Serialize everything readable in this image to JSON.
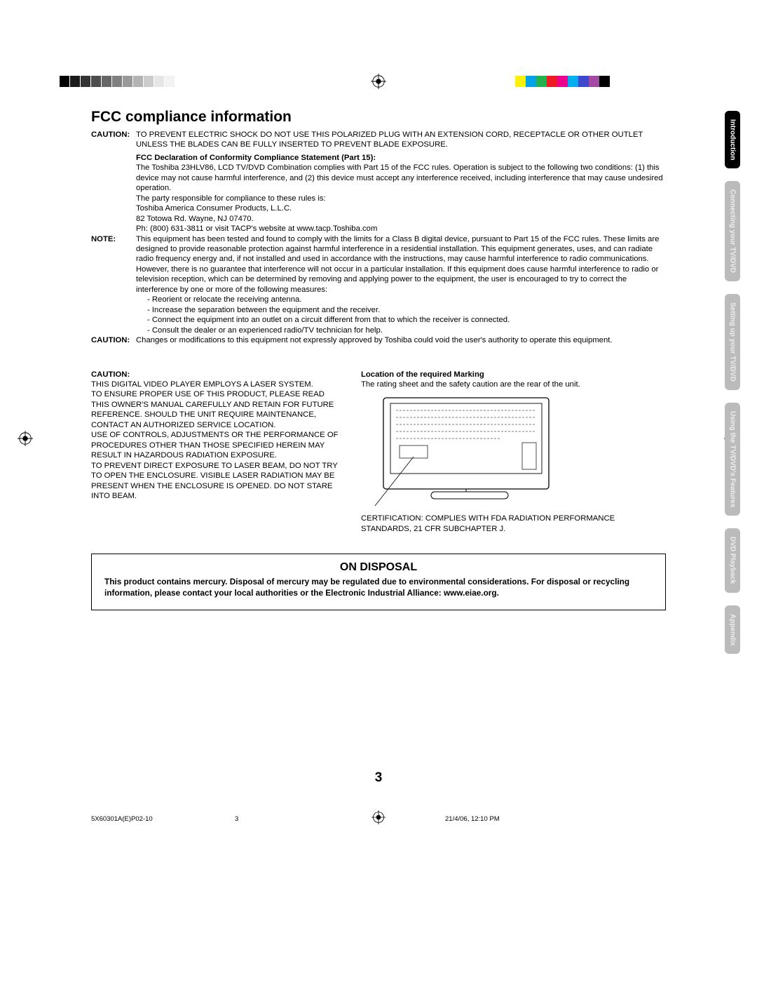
{
  "heading": "FCC compliance information",
  "caution_label": "CAUTION:",
  "caution_text": "TO PREVENT ELECTRIC SHOCK DO NOT USE THIS POLARIZED PLUG WITH AN EXTENSION CORD, RECEPTACLE OR OTHER OUTLET UNLESS THE BLADES CAN BE FULLY INSERTED TO PREVENT BLADE EXPOSURE.",
  "fcc_decl": "FCC Declaration of Conformity Compliance Statement (Part 15):",
  "fcc_body_1": "The Toshiba 23HLV86, LCD TV/DVD Combination complies with Part 15 of the FCC rules. Operation is subject to the following two conditions: (1) this device may not cause harmful interference, and (2) this device must accept any interference received, including interference that may cause undesired operation.",
  "fcc_body_2": "The party responsible for compliance to these rules is:",
  "fcc_body_3": "Toshiba America Consumer Products, L.L.C.",
  "fcc_body_4": "82 Totowa Rd. Wayne, NJ 07470.",
  "fcc_body_5": "Ph: (800) 631-3811 or visit TACP's website at www.tacp.Toshiba.com",
  "note_label": "NOTE:",
  "note_text": "This equipment has been tested and found to comply with the limits for a Class B digital device, pursuant to Part 15 of the FCC rules. These limits are designed to provide reasonable protection against harmful interference in a residential installation. This equipment generates, uses, and can radiate radio frequency energy and, if not installed and used in accordance with the instructions, may cause harmful interference to radio communications. However, there is no guarantee that interference will not occur in a particular installation. If this equipment does cause harmful interference to radio or television reception, which can be determined by removing and applying power to the equipment, the user is encouraged to try to correct the interference by one or more of the following measures:",
  "note_b1": "-   Reorient or relocate the receiving antenna.",
  "note_b2": "-   Increase the separation between the equipment and the receiver.",
  "note_b3": "-   Connect the equipment into an outlet on a circuit different from that to which the receiver is connected.",
  "note_b4": "-   Consult the dealer or an experienced radio/TV technician for help.",
  "caution2_label": "CAUTION:",
  "caution2_text": "Changes or modifications to this equipment not expressly approved by Toshiba could void the user's authority to operate this equipment.",
  "left_caution_label": "CAUTION:",
  "left_p1": "THIS DIGITAL VIDEO PLAYER EMPLOYS A LASER SYSTEM.",
  "left_p2": "TO ENSURE PROPER USE OF THIS PRODUCT, PLEASE READ THIS OWNER'S MANUAL CAREFULLY AND RETAIN FOR FUTURE REFERENCE.  SHOULD THE UNIT REQUIRE MAINTENANCE, CONTACT AN AUTHORIZED SERVICE LOCATION.",
  "left_p3": "USE OF CONTROLS, ADJUSTMENTS OR THE PERFORMANCE OF PROCEDURES OTHER THAN THOSE SPECIFIED HEREIN MAY RESULT IN HAZARDOUS RADIATION EXPOSURE.",
  "left_p4": "TO PREVENT DIRECT EXPOSURE TO LASER BEAM, DO NOT TRY TO OPEN THE ENCLOSURE. VISIBLE LASER RADIATION MAY BE PRESENT WHEN THE ENCLOSURE IS OPENED.  DO NOT STARE INTO BEAM.",
  "right_title": "Location of the required Marking",
  "right_sub": "The rating sheet and the safety caution are the rear of the unit.",
  "right_cert": "CERTIFICATION: COMPLIES WITH FDA RADIATION PERFORMANCE STANDARDS, 21 CFR SUBCHAPTER J.",
  "disposal_title": "ON DISPOSAL",
  "disposal_text": "This product contains mercury. Disposal of mercury may be regulated due to environmental considerations. For disposal or recycling information, please contact your local authorities or the Electronic Industrial Alliance: www.eiae.org.",
  "tabs": {
    "t1": "Introduction",
    "t2": "Connecting your TV/DVD",
    "t3": "Setting up your TV/DVD",
    "t4": "Using the TV/DVD's Features",
    "t5": "DVD Playback",
    "t6": "Appendix"
  },
  "page_num": "3",
  "footer_doc": "5X60301A(E)P02-10",
  "footer_page": "3",
  "footer_date": "21/4/06, 12:10 PM",
  "colors": {
    "bw_bars": [
      "#000000",
      "#1a1a1a",
      "#333333",
      "#4d4d4d",
      "#666666",
      "#808080",
      "#999999",
      "#b3b3b3",
      "#cccccc",
      "#e6e6e6",
      "#f2f2f2",
      "#ffffff"
    ],
    "color_bars": [
      "#ffffff",
      "#fff200",
      "#00a2e8",
      "#22b14c",
      "#ed1c24",
      "#ec008c",
      "#00aeef",
      "#3f48cc",
      "#a349a4",
      "#000000"
    ],
    "tab_active_bg": "#000000",
    "tab_inactive_bg": "#bbbbbb",
    "text_color": "#000000"
  },
  "tv_illustration": {
    "outer_w": 300,
    "outer_h": 165,
    "screen_lines": 5,
    "stand_w": 110
  }
}
